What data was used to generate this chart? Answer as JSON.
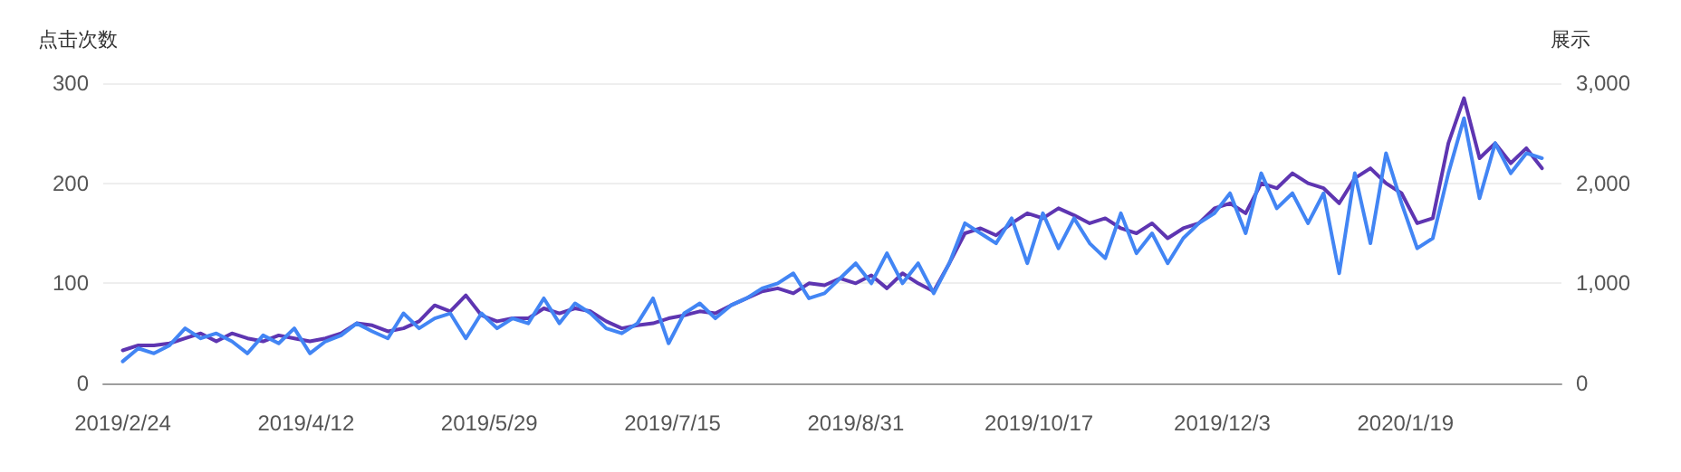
{
  "chart_data": {
    "type": "line",
    "ylabel": "点击次数",
    "y2label": "展示",
    "x": [
      "2019-02-24",
      "2019-02-28",
      "2019-03-04",
      "2019-03-08",
      "2019-03-12",
      "2019-03-16",
      "2019-03-20",
      "2019-03-24",
      "2019-03-28",
      "2019-04-01",
      "2019-04-05",
      "2019-04-09",
      "2019-04-13",
      "2019-04-17",
      "2019-04-21",
      "2019-04-25",
      "2019-04-29",
      "2019-05-03",
      "2019-05-07",
      "2019-05-11",
      "2019-05-15",
      "2019-05-19",
      "2019-05-23",
      "2019-05-27",
      "2019-05-31",
      "2019-06-04",
      "2019-06-08",
      "2019-06-12",
      "2019-06-16",
      "2019-06-20",
      "2019-06-24",
      "2019-06-28",
      "2019-07-02",
      "2019-07-06",
      "2019-07-10",
      "2019-07-14",
      "2019-07-18",
      "2019-07-22",
      "2019-07-26",
      "2019-07-30",
      "2019-08-03",
      "2019-08-07",
      "2019-08-11",
      "2019-08-15",
      "2019-08-19",
      "2019-08-23",
      "2019-08-27",
      "2019-08-31",
      "2019-09-04",
      "2019-09-08",
      "2019-09-12",
      "2019-09-16",
      "2019-09-20",
      "2019-09-24",
      "2019-09-28",
      "2019-10-02",
      "2019-10-06",
      "2019-10-10",
      "2019-10-14",
      "2019-10-18",
      "2019-10-22",
      "2019-10-26",
      "2019-10-30",
      "2019-11-03",
      "2019-11-07",
      "2019-11-11",
      "2019-11-15",
      "2019-11-19",
      "2019-11-23",
      "2019-11-27",
      "2019-12-01",
      "2019-12-05",
      "2019-12-09",
      "2019-12-13",
      "2019-12-17",
      "2019-12-21",
      "2019-12-25",
      "2019-12-29",
      "2020-01-02",
      "2020-01-06",
      "2020-01-10",
      "2020-01-14",
      "2020-01-18",
      "2020-01-22",
      "2020-01-26",
      "2020-01-30",
      "2020-02-03",
      "2020-02-07",
      "2020-02-11",
      "2020-02-15",
      "2020-02-19",
      "2020-02-23"
    ],
    "series": [
      {
        "color": "#5e35b1",
        "values": [
          33,
          38,
          38,
          40,
          45,
          50,
          42,
          50,
          45,
          42,
          48,
          45,
          42,
          45,
          50,
          60,
          58,
          52,
          55,
          62,
          78,
          72,
          88,
          68,
          62,
          65,
          65,
          75,
          70,
          75,
          72,
          62,
          55,
          58,
          60,
          65,
          68,
          72,
          70,
          78,
          85,
          92,
          95,
          90,
          100,
          98,
          105,
          100,
          108,
          95,
          110,
          100,
          92,
          120,
          150,
          155,
          148,
          160,
          170,
          165,
          175,
          168,
          160,
          165,
          155,
          150,
          160,
          145,
          155,
          160,
          175,
          180,
          170,
          200,
          195,
          210,
          200,
          195,
          180,
          205,
          215,
          200,
          190,
          160,
          165,
          240,
          285,
          225,
          240,
          220,
          235,
          215
        ]
      },
      {
        "color": "#4285f4",
        "axis": "y2",
        "values": [
          220,
          350,
          300,
          380,
          550,
          450,
          500,
          420,
          300,
          480,
          400,
          550,
          300,
          420,
          480,
          600,
          520,
          450,
          700,
          550,
          650,
          700,
          450,
          700,
          550,
          650,
          600,
          850,
          600,
          800,
          700,
          550,
          500,
          600,
          850,
          400,
          700,
          800,
          650,
          780,
          850,
          950,
          1000,
          1100,
          850,
          900,
          1050,
          1200,
          1000,
          1300,
          1000,
          1200,
          900,
          1200,
          1600,
          1500,
          1400,
          1650,
          1200,
          1700,
          1350,
          1650,
          1400,
          1250,
          1700,
          1300,
          1500,
          1200,
          1450,
          1600,
          1700,
          1900,
          1500,
          2100,
          1750,
          1900,
          1600,
          1900,
          1100,
          2100,
          1400,
          2300,
          1800,
          1350,
          1450,
          2100,
          2650,
          1850,
          2400,
          2100,
          2300,
          2250
        ]
      }
    ],
    "xlim": [
      "2019-02-19",
      "2020-02-28"
    ],
    "xticks": [
      {
        "value": "2019-02-24",
        "label": "2019/2/24"
      },
      {
        "value": "2019-04-12",
        "label": "2019/4/12"
      },
      {
        "value": "2019-05-29",
        "label": "2019/5/29"
      },
      {
        "value": "2019-07-15",
        "label": "2019/7/15"
      },
      {
        "value": "2019-08-31",
        "label": "2019/8/31"
      },
      {
        "value": "2019-10-17",
        "label": "2019/10/17"
      },
      {
        "value": "2019-12-03",
        "label": "2019/12/3"
      },
      {
        "value": "2020-01-19",
        "label": "2020/1/19"
      }
    ],
    "ylim": [
      0,
      300
    ],
    "yticks": [
      0,
      100,
      200,
      300
    ],
    "y2lim": [
      0,
      3000
    ],
    "y2ticks": [
      0,
      {
        "value": 1000,
        "label": "1,000"
      },
      {
        "value": 2000,
        "label": "2,000"
      },
      {
        "value": 3000,
        "label": "3,000"
      }
    ],
    "grid": "y",
    "marker": "none",
    "line_style": "solid"
  }
}
